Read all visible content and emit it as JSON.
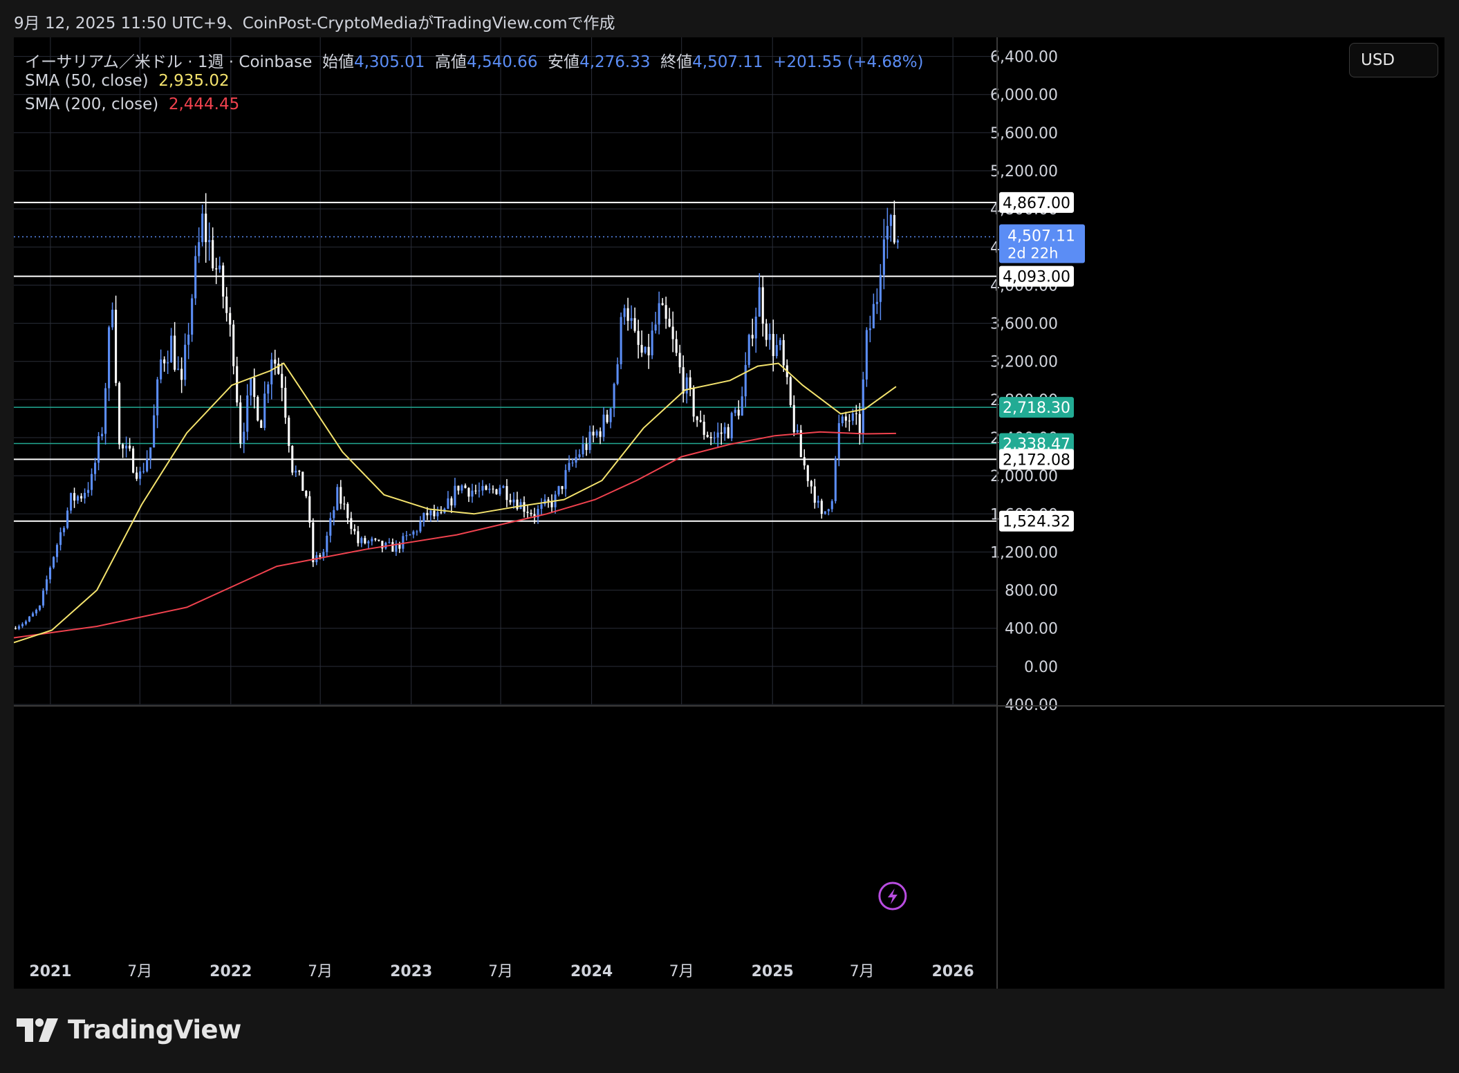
{
  "header": {
    "caption": "9月 12, 2025 11:50 UTC+9、CoinPost-CryptoMediaがTradingView.comで作成"
  },
  "legend": {
    "symbol": "イーサリアム／米ドル · 1週 · Coinbase",
    "open_label": "始値",
    "open": "4,305.01",
    "high_label": "高値",
    "high": "4,540.66",
    "low_label": "安値",
    "low": "4,276.33",
    "close_label": "終値",
    "close": "4,507.11",
    "change": "+201.55 (+4.68%)",
    "sma50_label": "SMA (50, close)",
    "sma50_value": "2,935.02",
    "sma200_label": "SMA (200, close)",
    "sma200_value": "2,444.45"
  },
  "currency": "USD",
  "brand": {
    "name": "TradingView",
    "icon": "tradingview-logo-icon"
  },
  "colors": {
    "background": "#000000",
    "grid": "#2a2e39",
    "candle_up": "#5b8df5",
    "candle_down": "#ffffff",
    "sma50": "#f4e36d",
    "sma200": "#f0424e",
    "level_white": "#ffffff",
    "level_green": "#22ab94",
    "price_dotted": "#5b8df5"
  },
  "chart_data": {
    "type": "candlestick",
    "title": "イーサリアム／米ドル · 1週 · Coinbase",
    "ylim": [
      -400,
      6600
    ],
    "y_ticks": [
      "6,400.00",
      "6,000.00",
      "5,600.00",
      "5,200.00",
      "4,800.00",
      "4,400.00",
      "4,000.00",
      "3,600.00",
      "3,200.00",
      "2,800.00",
      "2,400.00",
      "2,000.00",
      "1,600.00",
      "1,200.00",
      "800.00",
      "400.00",
      "0.00",
      "-400.00"
    ],
    "x_ticks": [
      {
        "label": "2021",
        "date": "2021-01-01",
        "bold": true
      },
      {
        "label": "7月",
        "date": "2021-07-01",
        "bold": false
      },
      {
        "label": "2022",
        "date": "2022-01-01",
        "bold": true
      },
      {
        "label": "7月",
        "date": "2022-07-01",
        "bold": false
      },
      {
        "label": "2023",
        "date": "2023-01-01",
        "bold": true
      },
      {
        "label": "7月",
        "date": "2023-07-01",
        "bold": false
      },
      {
        "label": "2024",
        "date": "2024-01-01",
        "bold": true
      },
      {
        "label": "7月",
        "date": "2024-07-01",
        "bold": false
      },
      {
        "label": "2025",
        "date": "2025-01-01",
        "bold": true
      },
      {
        "label": "7月",
        "date": "2025-07-01",
        "bold": false
      },
      {
        "label": "2026",
        "date": "2026-01-01",
        "bold": true
      }
    ],
    "x_range": [
      "2020-10-19",
      "2026-03-30"
    ],
    "horizontal_levels": [
      {
        "value": 4867.0,
        "label": "4,867.00",
        "color": "white"
      },
      {
        "value": 4093.0,
        "label": "4,093.00",
        "color": "white"
      },
      {
        "value": 2718.3,
        "label": "2,718.30",
        "color": "green"
      },
      {
        "value": 2338.47,
        "label": "2,338.47",
        "color": "green"
      },
      {
        "value": 2172.08,
        "label": "2,172.08",
        "color": "white"
      },
      {
        "value": 1524.32,
        "label": "1,524.32",
        "color": "white"
      }
    ],
    "current_price": {
      "value": 4507.11,
      "label": "4,507.11",
      "countdown": "2d 22h"
    },
    "price_path": [
      [
        "2020-10-19",
        400
      ],
      [
        "2020-11-16",
        470
      ],
      [
        "2020-12-14",
        620
      ],
      [
        "2021-01-04",
        1050
      ],
      [
        "2021-01-25",
        1400
      ],
      [
        "2021-02-15",
        1750
      ],
      [
        "2021-03-08",
        1800
      ],
      [
        "2021-03-29",
        1950
      ],
      [
        "2021-04-19",
        2500
      ],
      [
        "2021-05-10",
        3900
      ],
      [
        "2021-05-24",
        2300
      ],
      [
        "2021-06-14",
        2200
      ],
      [
        "2021-07-05",
        2000
      ],
      [
        "2021-07-26",
        2300
      ],
      [
        "2021-08-16",
        3200
      ],
      [
        "2021-09-06",
        3400
      ],
      [
        "2021-09-27",
        2900
      ],
      [
        "2021-10-18",
        3900
      ],
      [
        "2021-11-08",
        4650
      ],
      [
        "2021-11-29",
        4300
      ],
      [
        "2021-12-20",
        3900
      ],
      [
        "2022-01-10",
        3300
      ],
      [
        "2022-01-24",
        2400
      ],
      [
        "2022-02-14",
        2900
      ],
      [
        "2022-03-07",
        2600
      ],
      [
        "2022-03-28",
        3300
      ],
      [
        "2022-04-18",
        3000
      ],
      [
        "2022-05-09",
        2100
      ],
      [
        "2022-06-06",
        1800
      ],
      [
        "2022-06-20",
        1100
      ],
      [
        "2022-07-11",
        1200
      ],
      [
        "2022-08-08",
        1800
      ],
      [
        "2022-08-29",
        1600
      ],
      [
        "2022-09-19",
        1300
      ],
      [
        "2022-10-17",
        1300
      ],
      [
        "2022-11-07",
        1250
      ],
      [
        "2022-12-05",
        1250
      ],
      [
        "2023-01-09",
        1400
      ],
      [
        "2023-02-06",
        1600
      ],
      [
        "2023-03-06",
        1550
      ],
      [
        "2023-04-10",
        1900
      ],
      [
        "2023-05-08",
        1850
      ],
      [
        "2023-06-05",
        1800
      ],
      [
        "2023-07-03",
        1900
      ],
      [
        "2023-08-14",
        1700
      ],
      [
        "2023-09-11",
        1600
      ],
      [
        "2023-10-23",
        1750
      ],
      [
        "2023-11-13",
        2000
      ],
      [
        "2023-12-11",
        2250
      ],
      [
        "2024-01-08",
        2400
      ],
      [
        "2024-02-05",
        2600
      ],
      [
        "2024-02-26",
        3200
      ],
      [
        "2024-03-11",
        3900
      ],
      [
        "2024-04-01",
        3400
      ],
      [
        "2024-04-22",
        3200
      ],
      [
        "2024-05-20",
        3700
      ],
      [
        "2024-06-10",
        3500
      ],
      [
        "2024-07-01",
        3100
      ],
      [
        "2024-07-29",
        2700
      ],
      [
        "2024-08-12",
        2500
      ],
      [
        "2024-09-09",
        2400
      ],
      [
        "2024-10-07",
        2500
      ],
      [
        "2024-11-04",
        2800
      ],
      [
        "2024-11-25",
        3600
      ],
      [
        "2024-12-09",
        3900
      ],
      [
        "2024-12-30",
        3400
      ],
      [
        "2025-01-20",
        3300
      ],
      [
        "2025-02-10",
        2700
      ],
      [
        "2025-03-03",
        2200
      ],
      [
        "2025-03-31",
        1800
      ],
      [
        "2025-04-14",
        1550
      ],
      [
        "2025-05-05",
        1800
      ],
      [
        "2025-05-19",
        2500
      ],
      [
        "2025-06-09",
        2600
      ],
      [
        "2025-06-30",
        2500
      ],
      [
        "2025-07-14",
        3400
      ],
      [
        "2025-08-04",
        3900
      ],
      [
        "2025-08-18",
        4700
      ],
      [
        "2025-08-25",
        4600
      ],
      [
        "2025-09-08",
        4507
      ]
    ],
    "sma50_path": [
      [
        "2020-10-19",
        250
      ],
      [
        "2021-01-04",
        380
      ],
      [
        "2021-04-05",
        800
      ],
      [
        "2021-07-05",
        1700
      ],
      [
        "2021-10-04",
        2450
      ],
      [
        "2022-01-03",
        2950
      ],
      [
        "2022-03-21",
        3100
      ],
      [
        "2022-04-18",
        3180
      ],
      [
        "2022-06-06",
        2800
      ],
      [
        "2022-08-15",
        2250
      ],
      [
        "2022-11-07",
        1800
      ],
      [
        "2023-02-06",
        1650
      ],
      [
        "2023-05-08",
        1600
      ],
      [
        "2023-08-07",
        1680
      ],
      [
        "2023-11-06",
        1750
      ],
      [
        "2024-01-22",
        1950
      ],
      [
        "2024-04-15",
        2500
      ],
      [
        "2024-07-08",
        2900
      ],
      [
        "2024-10-07",
        3000
      ],
      [
        "2024-12-02",
        3150
      ],
      [
        "2025-01-13",
        3180
      ],
      [
        "2025-03-03",
        2950
      ],
      [
        "2025-05-19",
        2650
      ],
      [
        "2025-07-07",
        2700
      ],
      [
        "2025-09-08",
        2935
      ]
    ],
    "sma200_path": [
      [
        "2020-10-19",
        300
      ],
      [
        "2021-04-05",
        420
      ],
      [
        "2021-10-04",
        620
      ],
      [
        "2022-04-04",
        1050
      ],
      [
        "2022-10-03",
        1230
      ],
      [
        "2023-04-03",
        1380
      ],
      [
        "2023-10-02",
        1600
      ],
      [
        "2024-01-08",
        1750
      ],
      [
        "2024-04-01",
        1950
      ],
      [
        "2024-07-01",
        2200
      ],
      [
        "2024-10-07",
        2330
      ],
      [
        "2025-01-06",
        2420
      ],
      [
        "2025-04-07",
        2460
      ],
      [
        "2025-07-07",
        2440
      ],
      [
        "2025-09-08",
        2444
      ]
    ]
  }
}
